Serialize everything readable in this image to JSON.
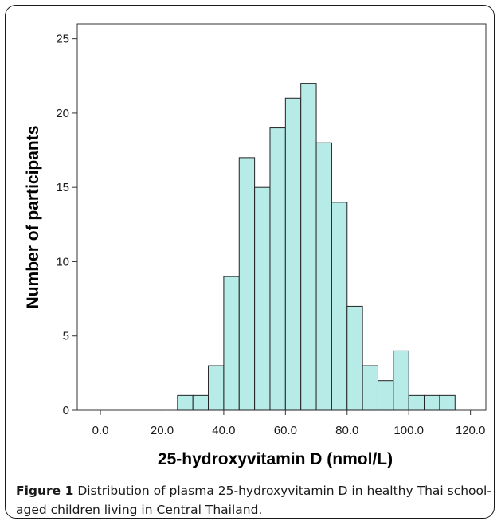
{
  "chart_data": {
    "type": "bar",
    "xlabel": "25-hydroxyvitamin D (nmol/L)",
    "ylabel": "Number of participants",
    "xlim": [
      -7.5,
      125
    ],
    "ylim": [
      0,
      26
    ],
    "x_ticks": [
      "0.0",
      "20.0",
      "40.0",
      "60.0",
      "80.0",
      "100.0",
      "120.0"
    ],
    "x_tick_values": [
      0,
      20,
      40,
      60,
      80,
      100,
      120
    ],
    "y_ticks": [
      "0",
      "5",
      "10",
      "15",
      "20",
      "25"
    ],
    "y_tick_values": [
      0,
      5,
      10,
      15,
      20,
      25
    ],
    "bin_width": 5,
    "bins": [
      {
        "start": 25,
        "count": 1
      },
      {
        "start": 30,
        "count": 1
      },
      {
        "start": 35,
        "count": 3
      },
      {
        "start": 40,
        "count": 9
      },
      {
        "start": 45,
        "count": 17
      },
      {
        "start": 50,
        "count": 15
      },
      {
        "start": 55,
        "count": 19
      },
      {
        "start": 60,
        "count": 21
      },
      {
        "start": 65,
        "count": 22
      },
      {
        "start": 70,
        "count": 18
      },
      {
        "start": 75,
        "count": 14
      },
      {
        "start": 80,
        "count": 7
      },
      {
        "start": 85,
        "count": 3
      },
      {
        "start": 90,
        "count": 2
      },
      {
        "start": 95,
        "count": 4
      },
      {
        "start": 100,
        "count": 1
      },
      {
        "start": 105,
        "count": 1
      },
      {
        "start": 110,
        "count": 1
      }
    ],
    "bar_color": "#b7ebe8",
    "grid": false
  },
  "caption": {
    "label": "Figure 1",
    "text": "Distribution of plasma 25-hydroxyvitamin D in healthy Thai school-aged children living in Central Thailand."
  }
}
